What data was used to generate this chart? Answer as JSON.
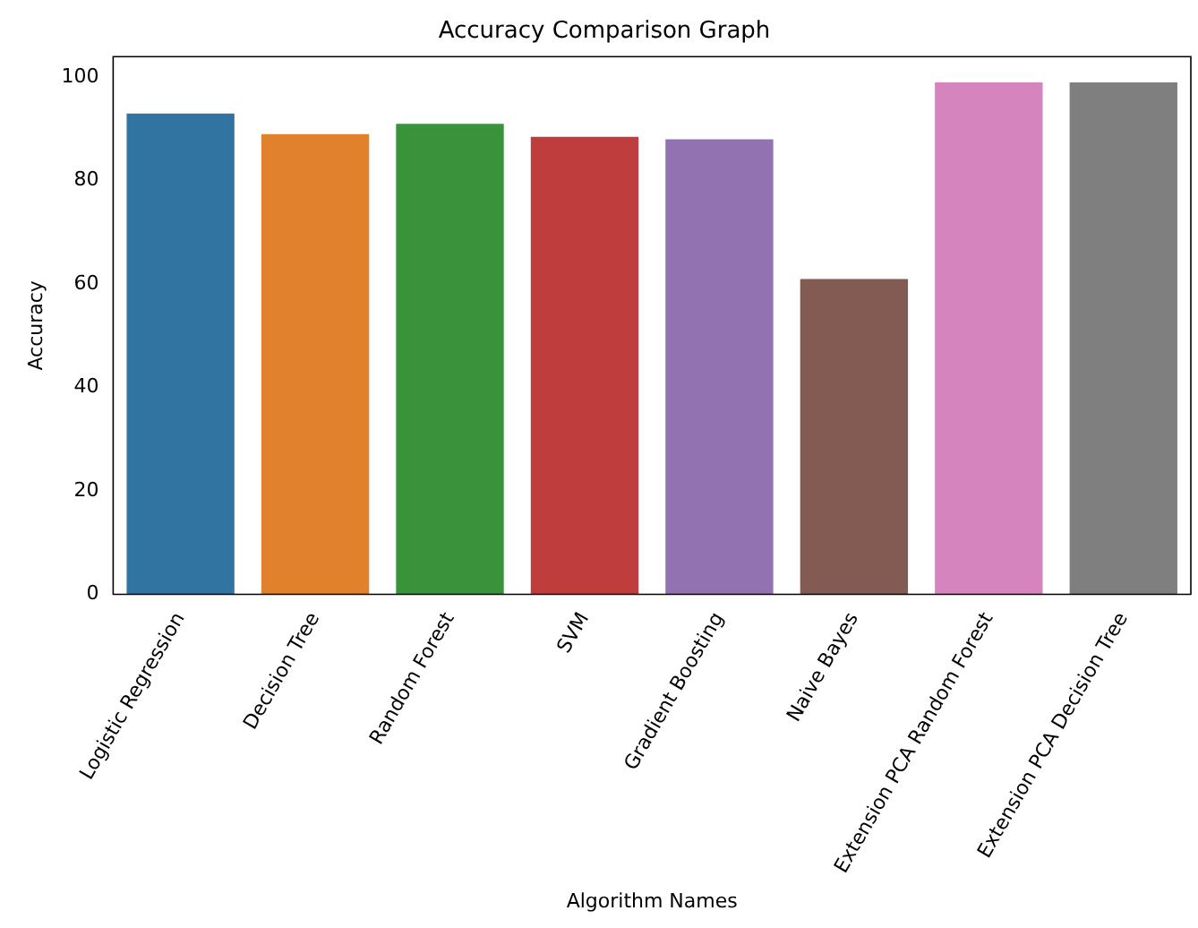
{
  "chart_data": {
    "type": "bar",
    "title": "Accuracy Comparison Graph",
    "xlabel": "Algorithm Names",
    "ylabel": "Accuracy",
    "categories": [
      "Logistic Regression",
      "Decision Tree",
      "Random Forest",
      "SVM",
      "Gradient Boosting",
      "Naive Bayes",
      "Extension PCA Random Forest",
      "Extension PCA Decision Tree"
    ],
    "values": [
      93,
      89,
      91,
      88.5,
      88,
      61,
      99,
      99
    ],
    "colors": [
      "#3274a1",
      "#e1812c",
      "#3a923a",
      "#c03d3e",
      "#9372b2",
      "#845b53",
      "#d684bd",
      "#7f7f7f"
    ],
    "ylim": [
      0,
      104
    ],
    "yticks": [
      0,
      20,
      40,
      60,
      80,
      100
    ],
    "grid": false,
    "legend": false
  }
}
